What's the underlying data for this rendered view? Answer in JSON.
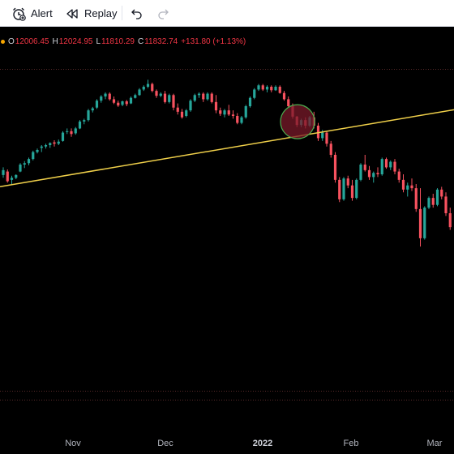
{
  "toolbar": {
    "alert_label": "Alert",
    "replay_label": "Replay",
    "icons": [
      "alarm-clock-icon",
      "rewind-icon",
      "undo-icon",
      "redo-icon"
    ]
  },
  "legend": {
    "o_key": "O",
    "o_val": "12006.45",
    "h_key": "H",
    "h_val": "12024.95",
    "l_key": "L",
    "l_val": "11810.29",
    "c_key": "C",
    "c_val": "11832.74",
    "change": "+131.80 (+1.13%)"
  },
  "colors": {
    "background": "#000000",
    "up": "#26a69a",
    "down": "#f7525f",
    "trendline": "#f0d04a",
    "highlight_fill": "#7a1a2a",
    "highlight_stroke": "#4caf50",
    "legend_text": "#f23645"
  },
  "x_axis": {
    "labels": [
      {
        "text": "Nov",
        "bold": false
      },
      {
        "text": "Dec",
        "bold": false
      },
      {
        "text": "2022",
        "bold": true
      },
      {
        "text": "Feb",
        "bold": false
      },
      {
        "text": "Mar",
        "bold": false
      }
    ]
  },
  "chart_data": {
    "type": "candlestick",
    "title": "",
    "xlabel": "",
    "ylabel": "",
    "x_ticks": [
      "Nov",
      "Dec",
      "2022",
      "Feb",
      "Mar"
    ],
    "legend_ohlc": {
      "open": 12006.45,
      "high": 12024.95,
      "low": 11810.29,
      "close": 11832.74,
      "change": 131.8,
      "change_pct": 1.13
    },
    "ylim": [
      9800,
      12250
    ],
    "candles": [
      [
        11475,
        11530,
        11455,
        11510
      ],
      [
        11500,
        11515,
        11420,
        11430
      ],
      [
        11440,
        11470,
        11405,
        11455
      ],
      [
        11455,
        11480,
        11445,
        11475
      ],
      [
        11500,
        11560,
        11495,
        11550
      ],
      [
        11550,
        11575,
        11525,
        11560
      ],
      [
        11560,
        11600,
        11545,
        11590
      ],
      [
        11590,
        11650,
        11580,
        11640
      ],
      [
        11640,
        11665,
        11630,
        11655
      ],
      [
        11670,
        11690,
        11640,
        11680
      ],
      [
        11680,
        11700,
        11665,
        11690
      ],
      [
        11690,
        11710,
        11670,
        11705
      ],
      [
        11710,
        11725,
        11680,
        11700
      ],
      [
        11700,
        11730,
        11690,
        11715
      ],
      [
        11720,
        11790,
        11715,
        11780
      ],
      [
        11785,
        11810,
        11770,
        11790
      ],
      [
        11790,
        11810,
        11750,
        11770
      ],
      [
        11775,
        11820,
        11765,
        11810
      ],
      [
        11810,
        11870,
        11805,
        11860
      ],
      [
        11860,
        11880,
        11840,
        11870
      ],
      [
        11870,
        11950,
        11860,
        11940
      ],
      [
        11940,
        11965,
        11925,
        11955
      ],
      [
        11960,
        12020,
        11950,
        12010
      ],
      [
        12010,
        12050,
        11995,
        12040
      ],
      [
        12040,
        12070,
        12020,
        12060
      ],
      [
        12060,
        12070,
        12010,
        12020
      ],
      [
        12020,
        12040,
        11985,
        11995
      ],
      [
        11995,
        12010,
        11965,
        11975
      ],
      [
        11980,
        12010,
        11970,
        12005
      ],
      [
        12005,
        12015,
        11970,
        11985
      ],
      [
        11990,
        12040,
        11985,
        12030
      ],
      [
        12030,
        12060,
        12025,
        12050
      ],
      [
        12050,
        12100,
        12045,
        12090
      ],
      [
        12090,
        12120,
        12080,
        12110
      ],
      [
        12110,
        12160,
        12100,
        12130
      ],
      [
        12130,
        12140,
        12070,
        12080
      ],
      [
        12080,
        12090,
        12030,
        12045
      ],
      [
        12045,
        12070,
        12035,
        12060
      ],
      [
        12060,
        12080,
        11990,
        12000
      ],
      [
        12000,
        12060,
        11990,
        12050
      ],
      [
        12050,
        12060,
        11940,
        11960
      ],
      [
        11960,
        11990,
        11910,
        11930
      ],
      [
        11930,
        11950,
        11880,
        11890
      ],
      [
        11900,
        11950,
        11890,
        11940
      ],
      [
        11940,
        12020,
        11930,
        12010
      ],
      [
        12010,
        12060,
        12000,
        12050
      ],
      [
        12050,
        12070,
        12030,
        12060
      ],
      [
        12060,
        12070,
        12000,
        12020
      ],
      [
        12020,
        12070,
        12010,
        12060
      ],
      [
        12060,
        12070,
        11990,
        12000
      ],
      [
        12000,
        12050,
        11920,
        11940
      ],
      [
        11940,
        11960,
        11900,
        11915
      ],
      [
        11910,
        11950,
        11890,
        11940
      ],
      [
        11940,
        11980,
        11900,
        11910
      ],
      [
        11910,
        11940,
        11880,
        11900
      ],
      [
        11900,
        11920,
        11840,
        11850
      ],
      [
        11850,
        11900,
        11840,
        11890
      ],
      [
        11890,
        11980,
        11880,
        11970
      ],
      [
        11970,
        12040,
        11960,
        12030
      ],
      [
        12030,
        12100,
        12020,
        12090
      ],
      [
        12090,
        12130,
        12080,
        12120
      ],
      [
        12120,
        12130,
        12080,
        12090
      ],
      [
        12090,
        12120,
        12070,
        12110
      ],
      [
        12110,
        12120,
        12070,
        12085
      ],
      [
        12085,
        12120,
        12080,
        12110
      ],
      [
        12110,
        12120,
        12060,
        12065
      ],
      [
        12065,
        12080,
        12010,
        12020
      ],
      [
        12020,
        12040,
        11960,
        11970
      ],
      [
        11970,
        11990,
        11880,
        11895
      ],
      [
        11895,
        11900,
        11820,
        11835
      ],
      [
        11835,
        11880,
        11820,
        11870
      ],
      [
        11870,
        11890,
        11810,
        11830
      ],
      [
        11830,
        11900,
        11820,
        11890
      ],
      [
        11890,
        11930,
        11810,
        11830
      ],
      [
        11830,
        11850,
        11720,
        11740
      ],
      [
        11740,
        11800,
        11720,
        11780
      ],
      [
        11780,
        11790,
        11680,
        11700
      ],
      [
        11700,
        11720,
        11600,
        11620
      ],
      [
        11620,
        11640,
        11420,
        11440
      ],
      [
        11440,
        11460,
        11280,
        11300
      ],
      [
        11300,
        11460,
        11290,
        11450
      ],
      [
        11450,
        11470,
        11380,
        11400
      ],
      [
        11400,
        11440,
        11290,
        11310
      ],
      [
        11310,
        11450,
        11300,
        11440
      ],
      [
        11440,
        11560,
        11430,
        11550
      ],
      [
        11550,
        11620,
        11500,
        11510
      ],
      [
        11510,
        11540,
        11440,
        11460
      ],
      [
        11460,
        11500,
        11420,
        11490
      ],
      [
        11490,
        11530,
        11460,
        11480
      ],
      [
        11480,
        11600,
        11470,
        11590
      ],
      [
        11590,
        11600,
        11520,
        11530
      ],
      [
        11530,
        11580,
        11510,
        11570
      ],
      [
        11570,
        11590,
        11480,
        11500
      ],
      [
        11500,
        11520,
        11420,
        11440
      ],
      [
        11440,
        11480,
        11350,
        11370
      ],
      [
        11370,
        11420,
        11320,
        11400
      ],
      [
        11400,
        11450,
        11360,
        11380
      ],
      [
        11380,
        11410,
        11210,
        11230
      ],
      [
        11230,
        11380,
        10960,
        11020
      ],
      [
        11020,
        11250,
        11010,
        11240
      ],
      [
        11240,
        11320,
        11230,
        11310
      ],
      [
        11310,
        11340,
        11240,
        11260
      ],
      [
        11260,
        11380,
        11250,
        11370
      ],
      [
        11370,
        11390,
        11300,
        11320
      ],
      [
        11320,
        11350,
        11180,
        11200
      ],
      [
        11200,
        11240,
        11080,
        11100
      ]
    ],
    "trendline": {
      "start": {
        "index": 0,
        "value": 11395
      },
      "end": {
        "index": 105,
        "value": 11940
      }
    },
    "highlight": {
      "center_index": 60,
      "value": 11905
    }
  }
}
